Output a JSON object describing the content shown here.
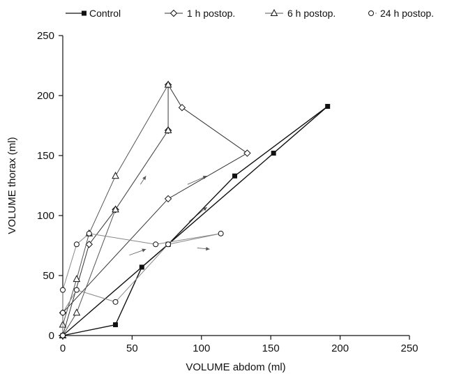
{
  "chart_data": {
    "type": "line",
    "title": "",
    "xlabel": "VOLUME abdom (ml)",
    "ylabel": "VOLUME thorax (ml)",
    "xlim": [
      0,
      250
    ],
    "ylim": [
      0,
      250
    ],
    "xticks": [
      0,
      50,
      100,
      150,
      200,
      250
    ],
    "yticks": [
      0,
      50,
      100,
      150,
      200,
      250
    ],
    "grid": false,
    "legend_position": "top",
    "series": [
      {
        "name": "Control",
        "marker": "filled-square",
        "line_color": "#111111",
        "points": [
          [
            0,
            0
          ],
          [
            38,
            9
          ],
          [
            57,
            57
          ],
          [
            76,
            76
          ],
          [
            124,
            133
          ],
          [
            191,
            191
          ]
        ],
        "return_path": [
          [
            191,
            191
          ],
          [
            152,
            152
          ],
          [
            76,
            76
          ],
          [
            0,
            0
          ]
        ]
      },
      {
        "name": "1 h postop.",
        "marker": "open-diamond",
        "line_color": "#333333",
        "points": [
          [
            0,
            0
          ],
          [
            19,
            76
          ],
          [
            38,
            105
          ],
          [
            76,
            171
          ],
          [
            76,
            209
          ],
          [
            86,
            190
          ],
          [
            133,
            152
          ],
          [
            76,
            114
          ],
          [
            0,
            19
          ]
        ]
      },
      {
        "name": "6 h postop.",
        "marker": "open-triangle",
        "line_color": "#555555",
        "points": [
          [
            0,
            0
          ],
          [
            0,
            9
          ],
          [
            10,
            47
          ],
          [
            19,
            85
          ],
          [
            38,
            133
          ],
          [
            76,
            209
          ],
          [
            76,
            171
          ],
          [
            38,
            105
          ],
          [
            10,
            19
          ],
          [
            0,
            0
          ]
        ]
      },
      {
        "name": "24 h postop.",
        "marker": "open-circle",
        "line_color": "#888888",
        "points": [
          [
            0,
            0
          ],
          [
            0,
            38
          ],
          [
            10,
            76
          ],
          [
            19,
            85
          ],
          [
            67,
            76
          ],
          [
            114,
            85
          ],
          [
            76,
            76
          ],
          [
            38,
            28
          ],
          [
            10,
            38
          ],
          [
            0,
            19
          ],
          [
            0,
            0
          ]
        ]
      }
    ],
    "arrows": [
      {
        "from": [
          56,
          126
        ],
        "to": [
          60,
          133
        ]
      },
      {
        "from": [
          90,
          126
        ],
        "to": [
          104,
          133
        ]
      },
      {
        "from": [
          91,
          95
        ],
        "to": [
          104,
          107
        ]
      },
      {
        "from": [
          48,
          67
        ],
        "to": [
          60,
          72
        ]
      },
      {
        "from": [
          97,
          73
        ],
        "to": [
          106,
          72
        ]
      }
    ]
  }
}
